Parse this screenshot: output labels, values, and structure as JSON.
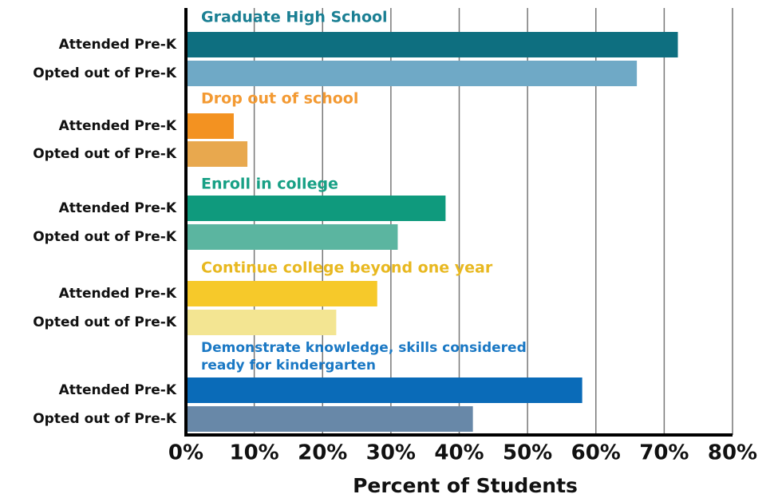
{
  "chart_data": {
    "type": "grouped-barh",
    "xlabel": "Percent of Students",
    "xlim": [
      0,
      80
    ],
    "xticks": [
      {
        "value": 0,
        "label": "0%"
      },
      {
        "value": 10,
        "label": "10%"
      },
      {
        "value": 20,
        "label": "20%"
      },
      {
        "value": 30,
        "label": "30%"
      },
      {
        "value": 40,
        "label": "40%"
      },
      {
        "value": 50,
        "label": "50%"
      },
      {
        "value": 60,
        "label": "60%"
      },
      {
        "value": 70,
        "label": "70%"
      },
      {
        "value": 80,
        "label": "80%"
      }
    ],
    "grid": true,
    "groups": [
      {
        "title": [
          "Graduate High School"
        ],
        "title_color": "#1a7f93",
        "categories": [
          "Attended Pre-K",
          "Opted out of Pre-K"
        ],
        "values": [
          72,
          66
        ],
        "colors": [
          "#0e6f80",
          "#6fa9c6"
        ]
      },
      {
        "title": [
          "Drop out of school"
        ],
        "title_color": "#f39a33",
        "categories": [
          "Attended Pre-K",
          "Opted out of Pre-K"
        ],
        "values": [
          7,
          9
        ],
        "colors": [
          "#f39221",
          "#e8a84e"
        ]
      },
      {
        "title": [
          "Enroll in college"
        ],
        "title_color": "#17a085",
        "categories": [
          "Attended Pre-K",
          "Opted out of Pre-K"
        ],
        "values": [
          38,
          31
        ],
        "colors": [
          "#0f9a7d",
          "#5bb5a0"
        ]
      },
      {
        "title": [
          "Continue college beyond one year"
        ],
        "title_color": "#e8b820",
        "categories": [
          "Attended Pre-K",
          "Opted out of Pre-K"
        ],
        "values": [
          28,
          22
        ],
        "colors": [
          "#f6c92a",
          "#f3e592"
        ]
      },
      {
        "title": [
          "Demonstrate knowledge, skills considered",
          "ready for kindergarten"
        ],
        "title_color": "#1a78c4",
        "categories": [
          "Attended Pre-K",
          "Opted out of Pre-K"
        ],
        "values": [
          58,
          42
        ],
        "colors": [
          "#0a6bb8",
          "#6888a8"
        ]
      }
    ]
  }
}
